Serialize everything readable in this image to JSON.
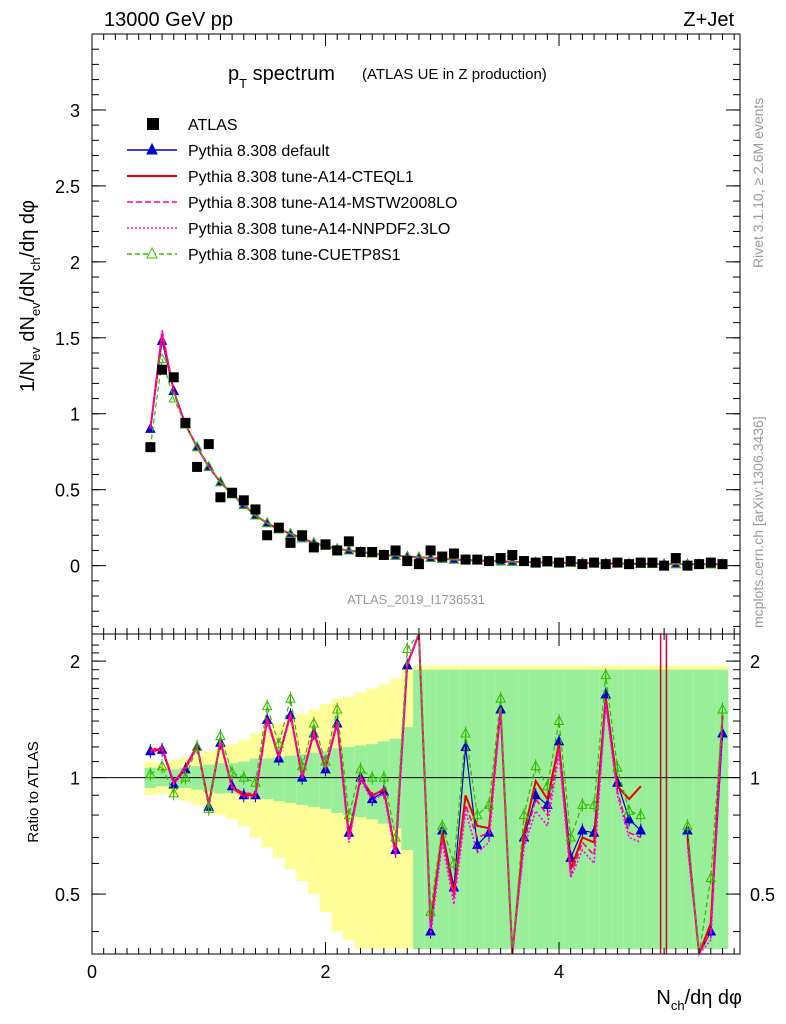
{
  "header": {
    "left": "13000 GeV pp",
    "right": "Z+Jet"
  },
  "title": {
    "main": "p",
    "main_sub": "T",
    "main_rest": " spectrum",
    "detail": "(ATLAS UE in Z production)"
  },
  "watermark": "ATLAS_2019_I1736531",
  "side_labels": {
    "top": "Rivet 3.1.10, ≥ 2.6M events",
    "bottom": "mcplots.cern.ch [arXiv:1306.3436]"
  },
  "axes": {
    "ylabel_main": "1/N_ev dN_ev/dN_ch/dη dφ",
    "ylabel_ratio": "Ratio to ATLAS",
    "xlabel": "N_ch/dη dφ"
  },
  "legend": [
    {
      "label": "ATLAS",
      "color": "#000000",
      "style": "square"
    },
    {
      "label": "Pythia 8.308 default",
      "color": "#0000cc",
      "style": "line-triangle"
    },
    {
      "label": "Pythia 8.308 tune-A14-CTEQL1",
      "color": "#ee0000",
      "style": "solid"
    },
    {
      "label": "Pythia 8.308 tune-A14-MSTW2008LO",
      "color": "#ff0088",
      "style": "dashed"
    },
    {
      "label": "Pythia 8.308 tune-A14-NNPDF2.3LO",
      "color": "#ff00ff",
      "style": "dotted"
    },
    {
      "label": "Pythia 8.308 tune-CUETP8S1",
      "color": "#33bb00",
      "style": "dashed-open-triangle"
    }
  ],
  "chart_data": {
    "type": "scatter",
    "xlim": [
      0,
      5.55
    ],
    "main_ylim": [
      -0.45,
      3.5
    ],
    "ratio_ylim": [
      0.35,
      2.35
    ],
    "x_ticks": [
      0,
      2,
      4
    ],
    "main_y_ticks": [
      "0",
      "0.5",
      "1",
      "1.5",
      "2",
      "2.5",
      "3"
    ],
    "ratio_y_ticks": [
      "0.5",
      "1",
      "2"
    ],
    "x": [
      0.5,
      0.6,
      0.7,
      0.8,
      0.9,
      1.0,
      1.1,
      1.2,
      1.3,
      1.4,
      1.5,
      1.6,
      1.7,
      1.8,
      1.9,
      2.0,
      2.1,
      2.2,
      2.3,
      2.4,
      2.5,
      2.6,
      2.7,
      2.8,
      2.9,
      3.0,
      3.1,
      3.2,
      3.3,
      3.4,
      3.5,
      3.6,
      3.7,
      3.8,
      3.9,
      4.0,
      4.1,
      4.2,
      4.3,
      4.4,
      4.5,
      4.6,
      4.7,
      4.8,
      4.9,
      5.0,
      5.1,
      5.2,
      5.3,
      5.4
    ],
    "data": [
      0.78,
      1.29,
      1.24,
      0.94,
      0.65,
      0.8,
      0.45,
      0.48,
      0.43,
      0.37,
      0.2,
      0.25,
      0.15,
      0.2,
      0.12,
      0.14,
      0.1,
      0.16,
      0.09,
      0.09,
      0.07,
      0.1,
      0.03,
      0.01,
      0.1,
      0.06,
      0.08,
      0.04,
      0.04,
      0.03,
      0.05,
      0.07,
      0.03,
      0.02,
      0.03,
      0.02,
      0.03,
      0.01,
      0.02,
      0.01,
      0.02,
      0.01,
      0.02,
      0.02,
      0.0,
      0.05,
      0.0,
      0.01,
      0.02,
      0.01
    ],
    "data_band_inner": [
      0.06,
      0.05,
      0.05,
      0.06,
      0.07,
      0.08,
      0.09,
      0.09,
      0.1,
      0.12,
      0.12,
      0.13,
      0.14,
      0.15,
      0.16,
      0.17,
      0.19,
      0.2,
      0.21,
      0.22,
      0.24,
      0.26,
      0.35,
      0.9,
      0.9,
      0.9,
      0.9,
      0.9,
      0.9,
      0.9,
      0.9,
      0.9,
      0.9,
      0.9,
      0.9,
      0.9,
      0.9,
      0.9,
      0.9,
      0.9,
      0.9,
      0.9,
      0.9,
      0.9,
      0.9,
      0.9,
      0.9,
      0.9,
      0.9,
      0.9
    ],
    "data_band_outer": [
      0.1,
      0.09,
      0.11,
      0.13,
      0.15,
      0.17,
      0.2,
      0.22,
      0.25,
      0.3,
      0.34,
      0.38,
      0.42,
      0.46,
      0.5,
      0.55,
      0.6,
      0.62,
      0.66,
      0.7,
      0.74,
      0.8,
      0.9,
      0.95,
      0.95,
      0.95,
      0.95,
      0.95,
      0.95,
      0.95,
      0.95,
      0.95,
      0.95,
      0.95,
      0.95,
      0.95,
      0.95,
      0.95,
      0.95,
      0.95,
      0.95,
      0.95,
      0.95,
      0.95,
      0.95,
      0.95,
      0.95,
      0.95,
      0.95,
      0.95
    ],
    "ratio_series": [
      {
        "name": "Pythia 8.308 default",
        "color": "#0000cc",
        "values": [
          1.17,
          1.18,
          0.96,
          1.05,
          1.2,
          0.84,
          1.23,
          0.95,
          0.9,
          0.9,
          1.41,
          1.12,
          1.45,
          1.0,
          1.3,
          1.05,
          1.38,
          0.72,
          1.0,
          0.88,
          0.92,
          0.65,
          1.95,
          3.0,
          0.4,
          0.73,
          0.52,
          1.2,
          0.67,
          0.72,
          1.5,
          0.3,
          0.7,
          0.9,
          0.85,
          1.24,
          0.62,
          0.73,
          0.72,
          1.64,
          0.97,
          0.78,
          0.73,
          null,
          null,
          null,
          0.73,
          0.3,
          0.4,
          1.3
        ]
      },
      {
        "name": "Pythia 8.308 tune-A14-CTEQL1",
        "color": "#ee0000",
        "values": [
          1.17,
          1.19,
          0.97,
          1.06,
          1.21,
          0.85,
          1.24,
          0.94,
          0.9,
          0.9,
          1.42,
          1.13,
          1.46,
          1.0,
          1.31,
          1.06,
          1.39,
          0.7,
          1.0,
          0.9,
          0.93,
          0.64,
          1.96,
          3.0,
          0.42,
          0.72,
          0.5,
          0.9,
          0.75,
          0.74,
          1.5,
          0.3,
          0.72,
          0.98,
          0.88,
          1.22,
          0.58,
          0.7,
          0.68,
          1.6,
          0.95,
          0.88,
          0.95,
          null,
          null,
          null,
          0.7,
          0.3,
          0.42,
          1.45
        ]
      },
      {
        "name": "Pythia 8.308 tune-A14-MSTW2008LO",
        "color": "#ff0088",
        "values": [
          1.18,
          1.2,
          0.97,
          1.07,
          1.21,
          0.86,
          1.25,
          0.95,
          0.91,
          0.91,
          1.43,
          1.14,
          1.47,
          1.01,
          1.32,
          1.07,
          1.4,
          0.69,
          1.01,
          0.89,
          0.94,
          0.63,
          1.97,
          3.0,
          0.41,
          0.7,
          0.49,
          0.85,
          0.7,
          0.72,
          1.52,
          0.3,
          0.68,
          0.88,
          0.8,
          1.2,
          0.56,
          0.68,
          0.63,
          1.58,
          0.92,
          0.72,
          0.7,
          null,
          null,
          null,
          0.68,
          0.3,
          0.4,
          1.44
        ]
      },
      {
        "name": "Pythia 8.308 tune-A14-NNPDF2.3LO",
        "color": "#ff00ff",
        "values": [
          1.16,
          1.18,
          0.96,
          1.05,
          1.2,
          0.84,
          1.23,
          0.94,
          0.89,
          0.89,
          1.4,
          1.12,
          1.45,
          0.99,
          1.3,
          1.05,
          1.37,
          0.68,
          0.99,
          0.87,
          0.91,
          0.62,
          1.94,
          3.0,
          0.39,
          0.68,
          0.47,
          0.82,
          0.64,
          0.68,
          1.48,
          0.3,
          0.66,
          0.82,
          0.75,
          1.15,
          0.55,
          0.65,
          0.6,
          1.55,
          0.9,
          0.7,
          0.68,
          null,
          null,
          null,
          0.66,
          0.3,
          0.38,
          1.42
        ]
      },
      {
        "name": "Pythia 8.308 tune-CUETP8S1",
        "color": "#33bb00",
        "values": [
          1.02,
          1.07,
          0.91,
          1.0,
          1.2,
          0.83,
          1.28,
          1.03,
          1.0,
          0.97,
          1.53,
          1.22,
          1.6,
          1.07,
          1.38,
          1.1,
          1.5,
          0.8,
          1.05,
          1.0,
          1.0,
          0.7,
          2.15,
          3.0,
          0.45,
          0.75,
          0.6,
          1.3,
          0.8,
          0.85,
          1.6,
          0.3,
          0.8,
          1.07,
          0.95,
          1.4,
          0.7,
          0.85,
          0.85,
          1.84,
          1.06,
          0.82,
          0.8,
          null,
          null,
          null,
          0.75,
          0.3,
          0.55,
          1.5
        ]
      }
    ],
    "main_model": [
      0.9,
      1.48,
      1.15,
      0.93,
      0.78,
      0.65,
      0.55,
      0.47,
      0.4,
      0.33,
      0.28,
      0.24,
      0.21,
      0.18,
      0.15,
      0.13,
      0.11,
      0.1,
      0.09,
      0.08,
      0.07,
      0.065,
      0.06,
      0.055,
      0.05,
      0.045,
      0.04,
      0.037,
      0.034,
      0.031,
      0.028,
      0.026,
      0.024,
      0.022,
      0.02,
      0.019,
      0.018,
      0.017,
      0.016,
      0.015,
      0.014,
      0.013,
      0.012,
      0.011,
      0.011,
      0.01,
      0.01,
      0.009,
      0.009,
      0.009
    ],
    "main_model_peaks": {
      "default": 1.48,
      "CTEQL1": 1.52,
      "MSTW2008LO": 1.55,
      "NNPDF2.3LO": 1.53,
      "CUETP8S1": 1.36
    }
  }
}
